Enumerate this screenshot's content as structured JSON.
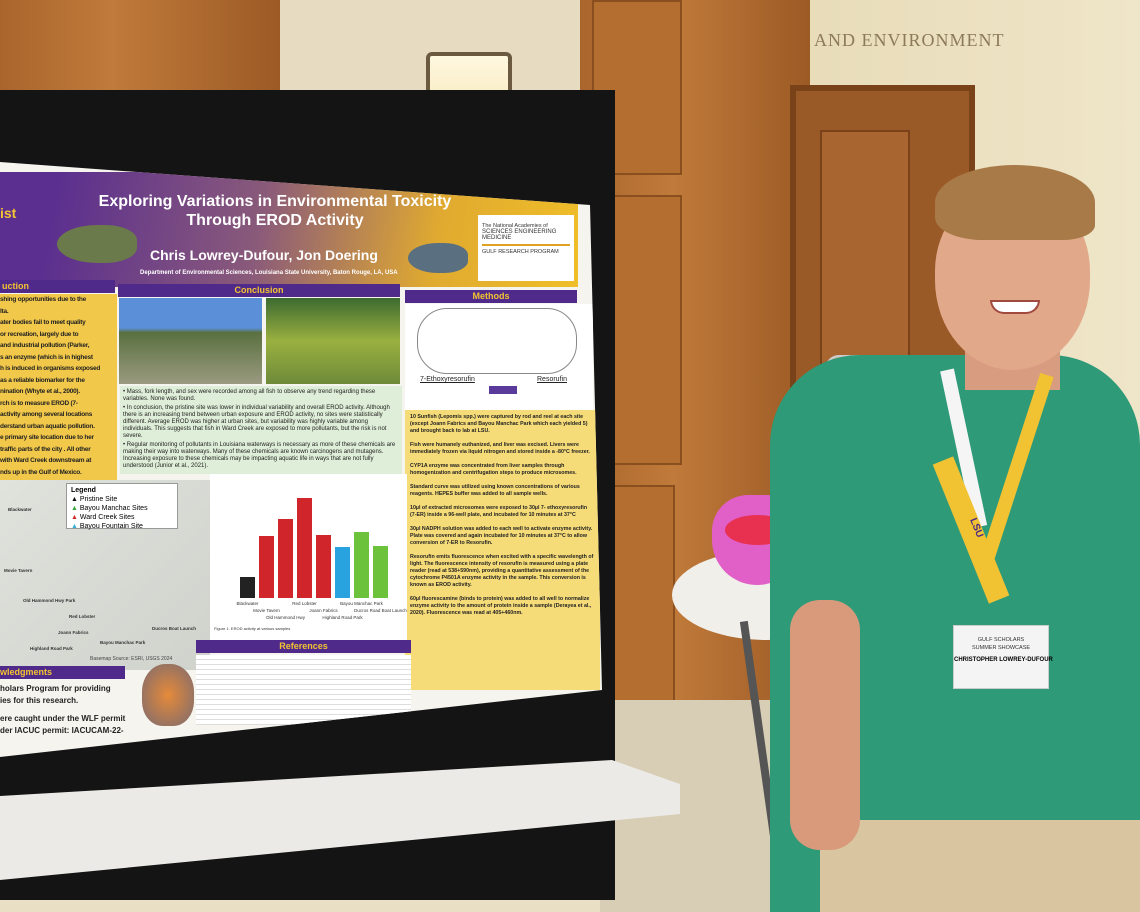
{
  "scene": {
    "wall_sign": "AND ENVIRONMENT"
  },
  "poster": {
    "title_line1": "Exploring Variations in Environmental Toxicity",
    "title_line2": "Through EROD Activity",
    "authors": "Chris Lowrey-Dufour, Jon Doering",
    "affiliation": "Department of Environmental Sciences, Louisiana State University, Baton Rouge, LA, USA",
    "left_header_fragment": "ist",
    "logo": {
      "org": "The National Academies of",
      "lines": [
        "SCIENCES",
        "ENGINEERING",
        "MEDICINE"
      ],
      "program": "GULF RESEARCH PROGRAM"
    },
    "introduction": {
      "header": "uction",
      "lines": [
        "shing opportunities due to the",
        "lta.",
        "ater bodies fail to meet quality",
        " or recreation, largely due to",
        " and industrial pollution (Parker,",
        "s an enzyme (which is in highest",
        "h is induced in organisms exposed",
        " as a reliable biomarker for the",
        "nination (Whyte et al., 2000).",
        "rch is to measure EROD (7-",
        " activity among several locations",
        "derstand urban aquatic pollution.",
        "e primary site location due to her",
        "traffic parts of the city . All other",
        " with Ward Creek downstream at",
        "nds up in the Gulf of Mexico."
      ]
    },
    "conclusion": {
      "header": "Conclusion",
      "bullets": [
        "Mass, fork length, and sex were recorded among all fish to observe any trend regarding these variables. None was found.",
        "In conclusion, the pristine site was lower in individual variability and overall EROD activity. Although there is an increasing trend between urban exposure and EROD activity, no sites were statistically different. Average EROD was higher at urban sites, but variability was highly variable among individuals. This suggests that fish in Ward Creek are exposed to more pollutants, but the risk is not severe.",
        "Regular monitoring of pollutants in Louisiana waterways is necessary as more of these chemicals are making their way into waterways. Many of these chemicals are known carcinogens and mutagens. Increasing exposure to these chemicals may be impacting aquatic life in ways that are not fully understood (Junior et al., 2021)."
      ]
    },
    "methods": {
      "header": "Methods",
      "reactant": "7-Ethoxyresorufin",
      "product": "Resorufin",
      "paragraphs": [
        "10 Sunfish (Lepomis spp.) were captured by rod and reel at each site (except Joann Fabrics and Bayou Manchac Park which each yielded 5) and brought back to lab at LSU.",
        "Fish were humanely euthanized, and liver was excised. Livers were immediately frozen via liquid nitrogen and stored inside a -80°C freezer.",
        "CYP1A enzyme was concentrated from liver samples through homogenization and centrifugation steps to produce microsomes.",
        "Standard curve was utilized using known concentrations of various reagents. HEPES buffer was added to all sample wells.",
        "10µl of extracted microsomes were exposed to 30µl 7- ethoxyresorufin (7-ER) inside a 96-well plate, and incubated for 10 minutes at 37°C",
        "30µl NADPH solution was added to each well to activate enzyme activity. Plate was covered and again incubated for 10 minutes at 37°C to allow conversion of 7-ER to Resorufin.",
        "Resorufin emits fluorescence when excited with a specific wavelength of light. The fluorescence intensity of resorufin is measured using a plate reader (read at 538+590nm), providing a quantitative assessment of the cytochrome P4501A enzyme activity in the sample. This conversion is known as EROD activity.",
        "60µl fluorescamine (binds to protein) was added to all well to normalize enzyme activity to the amount of protein inside a sample (Derayea et al., 2020). Fluorescence was read at 405+460nm."
      ]
    },
    "map": {
      "legend_title": "Legend",
      "legend": [
        {
          "label": "Pristine Site",
          "color": "#111111"
        },
        {
          "label": "Bayou Manchac Sites",
          "color": "#3aa83a"
        },
        {
          "label": "Ward Creek Sites",
          "color": "#d42a2a"
        },
        {
          "label": "Bayou Fountain Site",
          "color": "#36b0d8"
        }
      ],
      "places": [
        "Blackwater",
        "Old Hammond Hwy Park",
        "Movie Tavern",
        "Red Lobster",
        "Joann Fabrics",
        "Highland Road Park",
        "Bayou Manchac Park",
        "Ducros Boat Launch"
      ],
      "source": "Basemap Source: ESRI, USGS 2024"
    },
    "chart_data": {
      "type": "bar",
      "title": "",
      "caption": "Figure 1. EROD activity at various samples",
      "categories": [
        "Blackwater",
        "Movie Tavern",
        "Old Hammond Hwy",
        "Red Lobster",
        "Joann Fabrics",
        "Highland Road Park",
        "Bayou Manchac Park",
        "Ducros Road Boat Launch"
      ],
      "values": [
        0.21,
        0.62,
        0.79,
        1.0,
        0.63,
        0.51,
        0.66,
        0.52
      ],
      "colors": [
        "#222222",
        "#d0262b",
        "#d0262b",
        "#d0262b",
        "#d0262b",
        "#29a3e0",
        "#6cc23a",
        "#6cc23a"
      ],
      "note": ""
    },
    "references": {
      "header": "References"
    },
    "acknowledgments": {
      "header": "wledgments",
      "lines": [
        "holars Program for providing",
        "ies for this research.",
        "ere caught under the WLF permit",
        "der IACUC permit: IACUCAM-22-"
      ]
    }
  },
  "badge": {
    "line1": "GULF SCHOLARS",
    "line2": "SUMMER SHOWCASE",
    "name": "CHRISTOPHER LOWREY-DUFOUR",
    "lanyard": "LSU"
  }
}
